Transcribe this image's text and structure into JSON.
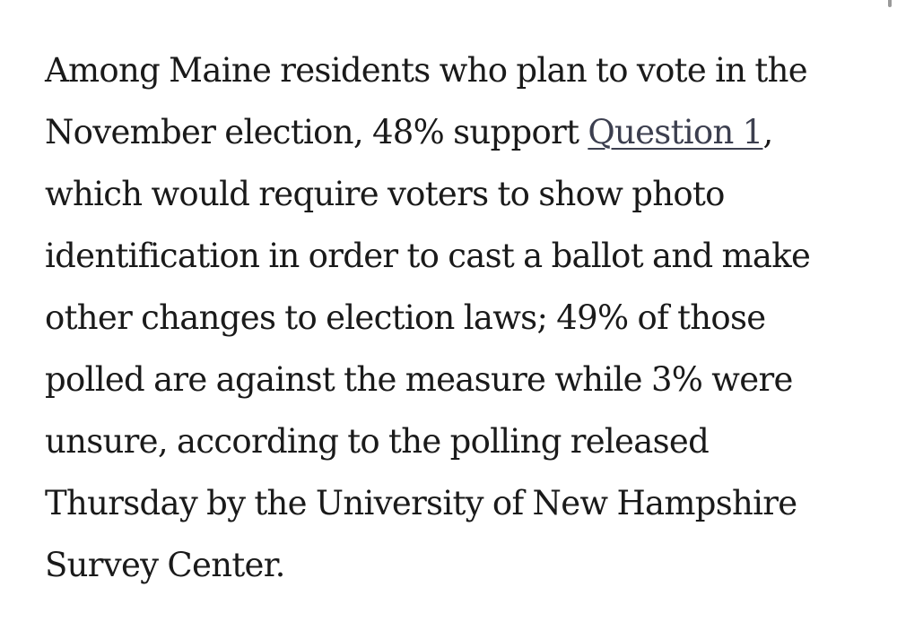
{
  "article": {
    "paragraph": {
      "text_before_link": "Among Maine residents who plan to vote in the November election, 48% support ",
      "link_text": "Question 1",
      "text_after_link": ", which would require voters to show photo identification in order to cast a ballot and make other changes to election laws; 49% of those polled are against the measure while 3% were unsure, according to the polling released Thursday by the University of New Hampshire Survey Center."
    }
  }
}
